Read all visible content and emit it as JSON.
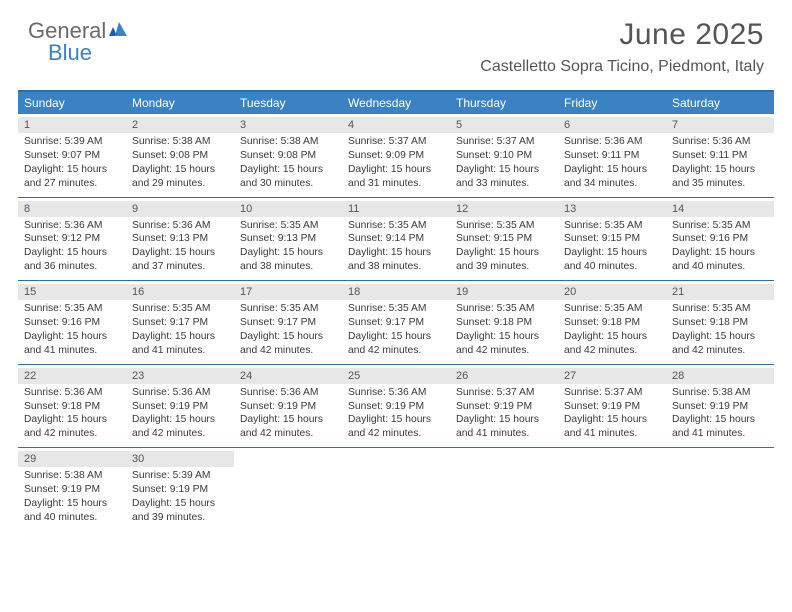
{
  "logo": {
    "text_general": "General",
    "text_blue": "Blue"
  },
  "header": {
    "title": "June 2025",
    "location": "Castelletto Sopra Ticino, Piedmont, Italy"
  },
  "colors": {
    "header_bar": "#3b82c4",
    "border": "#2f6fa8",
    "num_band": "#e7e7e7",
    "text": "#3a3a3a",
    "title_text": "#555555"
  },
  "day_names": [
    "Sunday",
    "Monday",
    "Tuesday",
    "Wednesday",
    "Thursday",
    "Friday",
    "Saturday"
  ],
  "weeks": [
    [
      {
        "n": "1",
        "sr": "5:39 AM",
        "ss": "9:07 PM",
        "dl": "15 hours and 27 minutes."
      },
      {
        "n": "2",
        "sr": "5:38 AM",
        "ss": "9:08 PM",
        "dl": "15 hours and 29 minutes."
      },
      {
        "n": "3",
        "sr": "5:38 AM",
        "ss": "9:08 PM",
        "dl": "15 hours and 30 minutes."
      },
      {
        "n": "4",
        "sr": "5:37 AM",
        "ss": "9:09 PM",
        "dl": "15 hours and 31 minutes."
      },
      {
        "n": "5",
        "sr": "5:37 AM",
        "ss": "9:10 PM",
        "dl": "15 hours and 33 minutes."
      },
      {
        "n": "6",
        "sr": "5:36 AM",
        "ss": "9:11 PM",
        "dl": "15 hours and 34 minutes."
      },
      {
        "n": "7",
        "sr": "5:36 AM",
        "ss": "9:11 PM",
        "dl": "15 hours and 35 minutes."
      }
    ],
    [
      {
        "n": "8",
        "sr": "5:36 AM",
        "ss": "9:12 PM",
        "dl": "15 hours and 36 minutes."
      },
      {
        "n": "9",
        "sr": "5:36 AM",
        "ss": "9:13 PM",
        "dl": "15 hours and 37 minutes."
      },
      {
        "n": "10",
        "sr": "5:35 AM",
        "ss": "9:13 PM",
        "dl": "15 hours and 38 minutes."
      },
      {
        "n": "11",
        "sr": "5:35 AM",
        "ss": "9:14 PM",
        "dl": "15 hours and 38 minutes."
      },
      {
        "n": "12",
        "sr": "5:35 AM",
        "ss": "9:15 PM",
        "dl": "15 hours and 39 minutes."
      },
      {
        "n": "13",
        "sr": "5:35 AM",
        "ss": "9:15 PM",
        "dl": "15 hours and 40 minutes."
      },
      {
        "n": "14",
        "sr": "5:35 AM",
        "ss": "9:16 PM",
        "dl": "15 hours and 40 minutes."
      }
    ],
    [
      {
        "n": "15",
        "sr": "5:35 AM",
        "ss": "9:16 PM",
        "dl": "15 hours and 41 minutes."
      },
      {
        "n": "16",
        "sr": "5:35 AM",
        "ss": "9:17 PM",
        "dl": "15 hours and 41 minutes."
      },
      {
        "n": "17",
        "sr": "5:35 AM",
        "ss": "9:17 PM",
        "dl": "15 hours and 42 minutes."
      },
      {
        "n": "18",
        "sr": "5:35 AM",
        "ss": "9:17 PM",
        "dl": "15 hours and 42 minutes."
      },
      {
        "n": "19",
        "sr": "5:35 AM",
        "ss": "9:18 PM",
        "dl": "15 hours and 42 minutes."
      },
      {
        "n": "20",
        "sr": "5:35 AM",
        "ss": "9:18 PM",
        "dl": "15 hours and 42 minutes."
      },
      {
        "n": "21",
        "sr": "5:35 AM",
        "ss": "9:18 PM",
        "dl": "15 hours and 42 minutes."
      }
    ],
    [
      {
        "n": "22",
        "sr": "5:36 AM",
        "ss": "9:18 PM",
        "dl": "15 hours and 42 minutes."
      },
      {
        "n": "23",
        "sr": "5:36 AM",
        "ss": "9:19 PM",
        "dl": "15 hours and 42 minutes."
      },
      {
        "n": "24",
        "sr": "5:36 AM",
        "ss": "9:19 PM",
        "dl": "15 hours and 42 minutes."
      },
      {
        "n": "25",
        "sr": "5:36 AM",
        "ss": "9:19 PM",
        "dl": "15 hours and 42 minutes."
      },
      {
        "n": "26",
        "sr": "5:37 AM",
        "ss": "9:19 PM",
        "dl": "15 hours and 41 minutes."
      },
      {
        "n": "27",
        "sr": "5:37 AM",
        "ss": "9:19 PM",
        "dl": "15 hours and 41 minutes."
      },
      {
        "n": "28",
        "sr": "5:38 AM",
        "ss": "9:19 PM",
        "dl": "15 hours and 41 minutes."
      }
    ],
    [
      {
        "n": "29",
        "sr": "5:38 AM",
        "ss": "9:19 PM",
        "dl": "15 hours and 40 minutes."
      },
      {
        "n": "30",
        "sr": "5:39 AM",
        "ss": "9:19 PM",
        "dl": "15 hours and 39 minutes."
      },
      null,
      null,
      null,
      null,
      null
    ]
  ],
  "labels": {
    "sunrise": "Sunrise: ",
    "sunset": "Sunset: ",
    "daylight": "Daylight: "
  }
}
